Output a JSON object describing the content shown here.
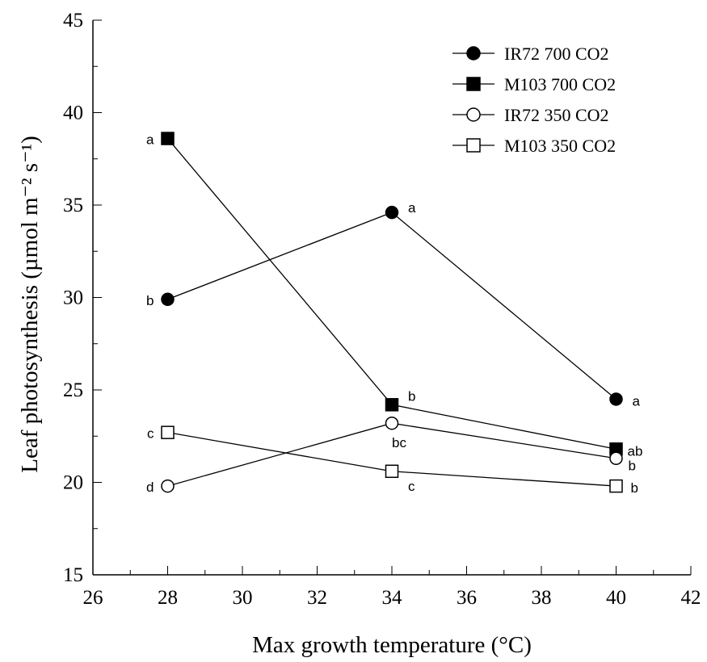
{
  "chart_data": {
    "type": "line",
    "xlabel": "Max growth temperature (°C)",
    "ylabel": "Leaf photosynthesis (µmol m⁻² s⁻¹)",
    "xlim": [
      26,
      42
    ],
    "ylim": [
      15,
      45
    ],
    "x_ticks": [
      26,
      28,
      30,
      32,
      34,
      36,
      38,
      40,
      42
    ],
    "y_ticks": [
      15,
      20,
      25,
      30,
      35,
      40,
      45
    ],
    "grid": false,
    "legend_position": "top-right",
    "x": [
      28,
      34,
      40
    ],
    "series": [
      {
        "name": "IR72 700 CO2",
        "marker": "filled-circle",
        "values": [
          29.9,
          34.6,
          24.5
        ],
        "letters": [
          "b",
          "a",
          "a"
        ]
      },
      {
        "name": "M103 700 CO2",
        "marker": "filled-square",
        "values": [
          38.6,
          24.2,
          21.8
        ],
        "letters": [
          "a",
          "b",
          "ab"
        ]
      },
      {
        "name": "IR72 350 CO2",
        "marker": "open-circle",
        "values": [
          19.8,
          23.2,
          21.3
        ],
        "letters": [
          "d",
          "bc",
          "b"
        ]
      },
      {
        "name": "M103 350 CO2",
        "marker": "open-square",
        "values": [
          22.7,
          20.6,
          19.8
        ],
        "letters": [
          "c",
          "c",
          "b"
        ]
      }
    ]
  }
}
